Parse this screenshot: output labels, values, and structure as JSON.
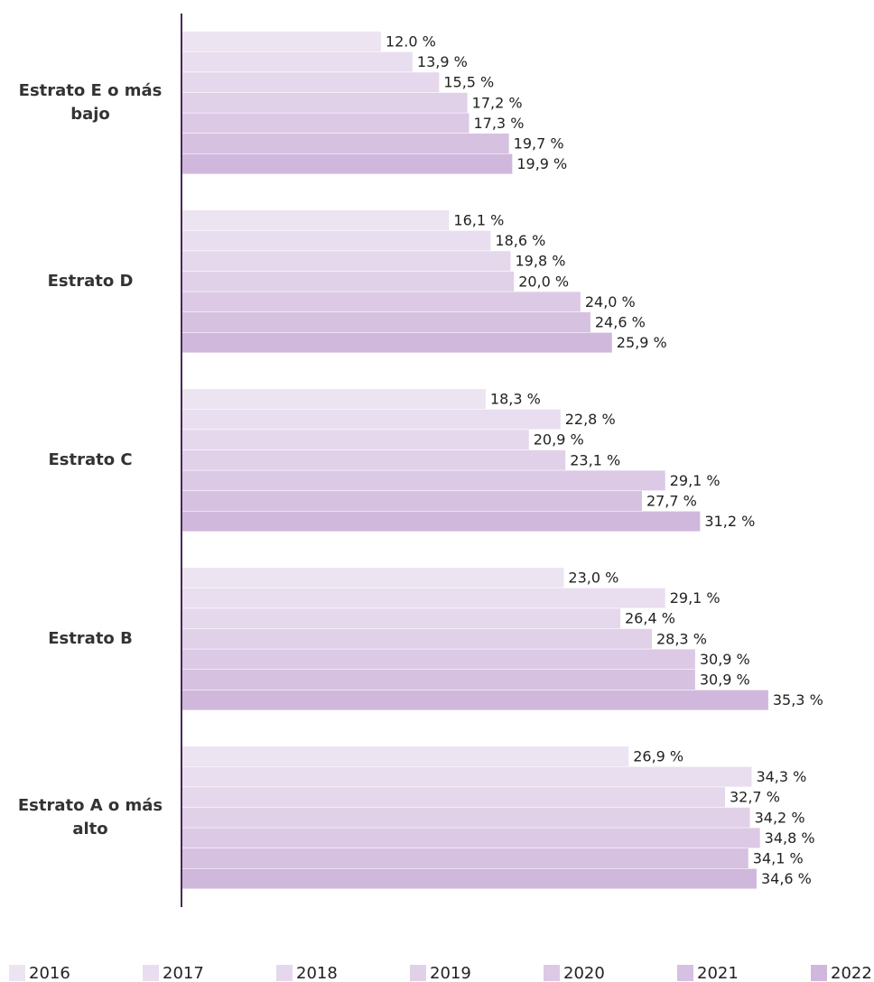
{
  "chart_data": {
    "type": "bar",
    "orientation": "horizontal",
    "categories": [
      "Estrato E o más bajo",
      "Estrato D",
      "Estrato C",
      "Estrato B",
      "Estrato A o más alto"
    ],
    "xlim": [
      0,
      41.5
    ],
    "legend": "bottom",
    "series": [
      {
        "name": "2016",
        "color": "#ede4f1",
        "values": [
          12.0,
          16.1,
          18.3,
          23.0,
          26.9
        ],
        "value_labels": [
          "12.0 %",
          "16,1 %",
          "18,3 %",
          "23,0 %",
          "26,9 %"
        ]
      },
      {
        "name": "2017",
        "color": "#e9def0",
        "values": [
          13.9,
          18.6,
          22.8,
          29.1,
          34.3
        ],
        "value_labels": [
          "13,9 %",
          "18,6 %",
          "22,8 %",
          "29,1 %",
          "34,3 %"
        ]
      },
      {
        "name": "2018",
        "color": "#e5d8ec",
        "values": [
          15.5,
          19.8,
          20.9,
          26.4,
          32.7
        ],
        "value_labels": [
          "15,5 %",
          "19,8 %",
          "20,9 %",
          "26,4 %",
          "32,7 %"
        ]
      },
      {
        "name": "2019",
        "color": "#e0d1e9",
        "values": [
          17.2,
          20.0,
          23.1,
          28.3,
          34.2
        ],
        "value_labels": [
          "17,2 %",
          "20,0 %",
          "23,1 %",
          "28,3 %",
          "34,2 %"
        ]
      },
      {
        "name": "2020",
        "color": "#dbc9e5",
        "values": [
          17.3,
          24.0,
          29.1,
          30.9,
          34.8
        ],
        "value_labels": [
          "17,3 %",
          "24,0 %",
          "29,1 %",
          "30,9 %",
          "34,8 %"
        ]
      },
      {
        "name": "2021",
        "color": "#d6c1e1",
        "values": [
          19.7,
          24.6,
          27.7,
          30.9,
          34.1
        ],
        "value_labels": [
          "19,7 %",
          "24,6 %",
          "27,7 %",
          "30,9 %",
          "34,1 %"
        ]
      },
      {
        "name": "2022",
        "color": "#d0b8dd",
        "values": [
          19.9,
          25.9,
          31.2,
          35.3,
          34.6
        ],
        "value_labels": [
          "19,9 %",
          "25,9 %",
          "31,2 %",
          "35,3 %",
          "34,6 %"
        ]
      }
    ]
  }
}
